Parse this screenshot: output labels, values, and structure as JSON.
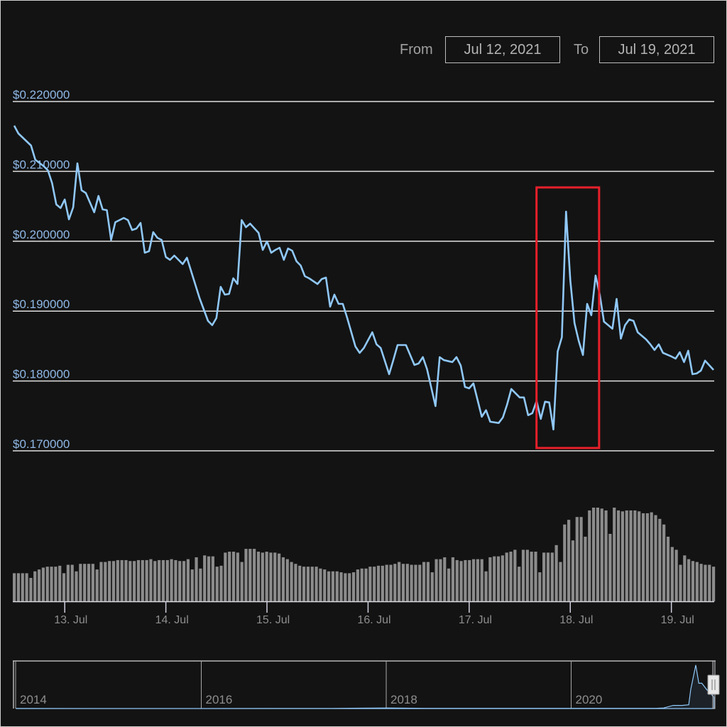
{
  "range_selector": {
    "from_label": "From",
    "from_value": "Jul 12, 2021",
    "to_label": "To",
    "to_value": "Jul 19, 2021"
  },
  "colors": {
    "background": "#131313",
    "price_line": "#90c8f8",
    "volume_bar": "#8c8c8c",
    "grid": "#e0e0e0",
    "highlight": "#e8202a",
    "axis_label": "#8fb8e6"
  },
  "chart_data": [
    {
      "type": "line",
      "series_kind": "price",
      "ylim": [
        0.17,
        0.22
      ],
      "y_ticks": [
        0.17,
        0.18,
        0.19,
        0.2,
        0.21,
        0.22
      ],
      "y_tick_labels": [
        "$0.170000",
        "$0.180000",
        "$0.190000",
        "$0.200000",
        "$0.210000",
        "$0.220000"
      ],
      "x_ticks": [
        "2021-07-13",
        "2021-07-14",
        "2021-07-15",
        "2021-07-16",
        "2021-07-17",
        "2021-07-18",
        "2021-07-19"
      ],
      "x_tick_labels": [
        "13. Jul",
        "14. Jul",
        "15. Jul",
        "16. Jul",
        "17. Jul",
        "18. Jul",
        "19. Jul"
      ],
      "grid": true,
      "highlight_box": {
        "from": "2021-07-17T17:00",
        "to": "2021-07-18T06:00",
        "color": "#e8202a"
      },
      "points": [
        [
          "2021-07-12T12:00",
          0.21654
        ],
        [
          "2021-07-12T13:00",
          0.21543
        ],
        [
          "2021-07-12T16:00",
          0.2137
        ],
        [
          "2021-07-12T17:00",
          0.21167
        ],
        [
          "2021-07-12T19:00",
          0.21075
        ],
        [
          "2021-07-12T20:00",
          0.21014
        ],
        [
          "2021-07-12T21:00",
          0.20831
        ],
        [
          "2021-07-12T22:00",
          0.20526
        ],
        [
          "2021-07-12T23:00",
          0.20476
        ],
        [
          "2021-07-13T00:00",
          0.20598
        ],
        [
          "2021-07-13T01:00",
          0.20313
        ],
        [
          "2021-07-13T02:00",
          0.20486
        ],
        [
          "2021-07-13T03:00",
          0.21116
        ],
        [
          "2021-07-13T04:00",
          0.2073
        ],
        [
          "2021-07-13T05:00",
          0.2069
        ],
        [
          "2021-07-13T07:00",
          0.20415
        ],
        [
          "2021-07-13T08:00",
          0.20648
        ],
        [
          "2021-07-13T09:00",
          0.20455
        ],
        [
          "2021-07-13T10:00",
          0.20445
        ],
        [
          "2021-07-13T11:00",
          0.20018
        ],
        [
          "2021-07-13T12:00",
          0.20272
        ],
        [
          "2021-07-13T14:00",
          0.20333
        ],
        [
          "2021-07-13T15:00",
          0.20303
        ],
        [
          "2021-07-13T16:00",
          0.20161
        ],
        [
          "2021-07-13T17:00",
          0.20181
        ],
        [
          "2021-07-13T18:00",
          0.20262
        ],
        [
          "2021-07-13T19:00",
          0.19835
        ],
        [
          "2021-07-13T20:00",
          0.19858
        ],
        [
          "2021-07-13T21:00",
          0.2013
        ],
        [
          "2021-07-13T22:00",
          0.20049
        ],
        [
          "2021-07-13T23:00",
          0.20018
        ],
        [
          "2021-07-14T00:00",
          0.19774
        ],
        [
          "2021-07-14T01:00",
          0.19734
        ],
        [
          "2021-07-14T02:00",
          0.19795
        ],
        [
          "2021-07-14T04:00",
          0.19673
        ],
        [
          "2021-07-14T05:00",
          0.19764
        ],
        [
          "2021-07-14T08:00",
          0.19185
        ],
        [
          "2021-07-14T10:00",
          0.1886
        ],
        [
          "2021-07-14T11:00",
          0.18799
        ],
        [
          "2021-07-14T12:00",
          0.189
        ],
        [
          "2021-07-14T13:00",
          0.19348
        ],
        [
          "2021-07-14T14:00",
          0.19236
        ],
        [
          "2021-07-14T15:00",
          0.19246
        ],
        [
          "2021-07-14T16:00",
          0.1947
        ],
        [
          "2021-07-14T17:00",
          0.19388
        ],
        [
          "2021-07-14T18:00",
          0.20303
        ],
        [
          "2021-07-14T19:00",
          0.20201
        ],
        [
          "2021-07-14T20:00",
          0.20252
        ],
        [
          "2021-07-14T22:00",
          0.2012
        ],
        [
          "2021-07-14T23:00",
          0.19876
        ],
        [
          "2021-07-15T00:00",
          0.19998
        ],
        [
          "2021-07-15T01:00",
          0.19835
        ],
        [
          "2021-07-15T02:00",
          0.19876
        ],
        [
          "2021-07-15T03:00",
          0.19906
        ],
        [
          "2021-07-15T04:00",
          0.19734
        ],
        [
          "2021-07-15T05:00",
          0.19896
        ],
        [
          "2021-07-15T06:00",
          0.19865
        ],
        [
          "2021-07-15T07:00",
          0.19713
        ],
        [
          "2021-07-15T08:00",
          0.19652
        ],
        [
          "2021-07-15T09:00",
          0.195
        ],
        [
          "2021-07-15T10:00",
          0.1947
        ],
        [
          "2021-07-15T12:00",
          0.19388
        ],
        [
          "2021-07-15T13:00",
          0.19459
        ],
        [
          "2021-07-15T14:00",
          0.1948
        ],
        [
          "2021-07-15T15:00",
          0.19063
        ],
        [
          "2021-07-15T16:00",
          0.19236
        ],
        [
          "2021-07-15T17:00",
          0.19104
        ],
        [
          "2021-07-15T18:00",
          0.19104
        ],
        [
          "2021-07-15T19:00",
          0.18911
        ],
        [
          "2021-07-15T21:00",
          0.18494
        ],
        [
          "2021-07-15T22:00",
          0.18402
        ],
        [
          "2021-07-15T23:00",
          0.18473
        ],
        [
          "2021-07-16T01:00",
          0.18697
        ],
        [
          "2021-07-16T02:00",
          0.18524
        ],
        [
          "2021-07-16T03:00",
          0.18473
        ],
        [
          "2021-07-16T05:00",
          0.18098
        ],
        [
          "2021-07-16T06:00",
          0.18299
        ],
        [
          "2021-07-16T07:00",
          0.18514
        ],
        [
          "2021-07-16T09:00",
          0.18514
        ],
        [
          "2021-07-16T11:00",
          0.1823
        ],
        [
          "2021-07-16T12:00",
          0.1825
        ],
        [
          "2021-07-16T13:00",
          0.18341
        ],
        [
          "2021-07-16T14:00",
          0.18169
        ],
        [
          "2021-07-16T16:00",
          0.1764
        ],
        [
          "2021-07-16T17:00",
          0.18341
        ],
        [
          "2021-07-16T18:00",
          0.18299
        ],
        [
          "2021-07-16T20:00",
          0.1827
        ],
        [
          "2021-07-16T21:00",
          0.18341
        ],
        [
          "2021-07-16T22:00",
          0.1822
        ],
        [
          "2021-07-16T23:00",
          0.17915
        ],
        [
          "2021-07-17T00:00",
          0.17894
        ],
        [
          "2021-07-17T01:00",
          0.17965
        ],
        [
          "2021-07-17T03:00",
          0.17488
        ],
        [
          "2021-07-17T04:00",
          0.17581
        ],
        [
          "2021-07-17T05:00",
          0.17417
        ],
        [
          "2021-07-17T07:00",
          0.17398
        ],
        [
          "2021-07-17T08:00",
          0.17478
        ],
        [
          "2021-07-17T09:00",
          0.17661
        ],
        [
          "2021-07-17T10:00",
          0.17885
        ],
        [
          "2021-07-17T12:00",
          0.17764
        ],
        [
          "2021-07-17T13:00",
          0.17764
        ],
        [
          "2021-07-17T14:00",
          0.1751
        ],
        [
          "2021-07-17T15:00",
          0.1754
        ],
        [
          "2021-07-17T16:00",
          0.17713
        ],
        [
          "2021-07-17T17:00",
          0.17457
        ],
        [
          "2021-07-17T18:00",
          0.17703
        ],
        [
          "2021-07-17T19:00",
          0.17693
        ],
        [
          "2021-07-17T20:00",
          0.17306
        ],
        [
          "2021-07-17T21:00",
          0.18423
        ],
        [
          "2021-07-17T22:00",
          0.18626
        ],
        [
          "2021-07-17T23:00",
          0.20425
        ],
        [
          "2021-07-18T00:00",
          0.19439
        ],
        [
          "2021-07-18T01:00",
          0.18829
        ],
        [
          "2021-07-18T02:00",
          0.18575
        ],
        [
          "2021-07-18T03:00",
          0.18372
        ],
        [
          "2021-07-18T04:00",
          0.19104
        ],
        [
          "2021-07-18T05:00",
          0.18941
        ],
        [
          "2021-07-18T06:00",
          0.1951
        ],
        [
          "2021-07-18T07:00",
          0.19236
        ],
        [
          "2021-07-18T08:00",
          0.1885
        ],
        [
          "2021-07-18T09:00",
          0.18799
        ],
        [
          "2021-07-18T10:00",
          0.18748
        ],
        [
          "2021-07-18T11:00",
          0.19175
        ],
        [
          "2021-07-18T12:00",
          0.18606
        ],
        [
          "2021-07-18T13:00",
          0.18799
        ],
        [
          "2021-07-18T14:00",
          0.1888
        ],
        [
          "2021-07-18T15:00",
          0.1886
        ],
        [
          "2021-07-18T16:00",
          0.18697
        ],
        [
          "2021-07-18T18:00",
          0.18595
        ],
        [
          "2021-07-18T19:00",
          0.18524
        ],
        [
          "2021-07-18T20:00",
          0.18443
        ],
        [
          "2021-07-18T21:00",
          0.18524
        ],
        [
          "2021-07-18T22:00",
          0.18402
        ],
        [
          "2021-07-19T00:00",
          0.18351
        ],
        [
          "2021-07-19T01:00",
          0.1832
        ],
        [
          "2021-07-19T02:00",
          0.18412
        ],
        [
          "2021-07-19T03:00",
          0.1827
        ],
        [
          "2021-07-19T04:00",
          0.18433
        ],
        [
          "2021-07-19T05:00",
          0.18098
        ],
        [
          "2021-07-19T06:00",
          0.18108
        ],
        [
          "2021-07-19T07:00",
          0.18148
        ],
        [
          "2021-07-19T08:00",
          0.18291
        ],
        [
          "2021-07-19T10:00",
          0.18159
        ]
      ]
    },
    {
      "type": "bar",
      "series_kind": "volume (relative, hourly, unlabeled axis)",
      "values": [
        30,
        30,
        30,
        30,
        25,
        32,
        34,
        36,
        37,
        37,
        37,
        38,
        30,
        39,
        39,
        32,
        40,
        40,
        40,
        40,
        34,
        42,
        42,
        43,
        43,
        44,
        44,
        44,
        43,
        43,
        44,
        44,
        44,
        45,
        43,
        44,
        44,
        44,
        45,
        44,
        43,
        43,
        45,
        34,
        47,
        35,
        49,
        48,
        48,
        37,
        38,
        52,
        53,
        53,
        52,
        42,
        56,
        56,
        56,
        53,
        52,
        53,
        52,
        52,
        51,
        47,
        45,
        42,
        40,
        38,
        37,
        37,
        37,
        37,
        35,
        34,
        32,
        32,
        32,
        31,
        30,
        30,
        31,
        34,
        35,
        35,
        37,
        37,
        38,
        38,
        39,
        39,
        40,
        42,
        40,
        40,
        39,
        39,
        39,
        42,
        42,
        31,
        45,
        45,
        47,
        35,
        47,
        44,
        43,
        44,
        44,
        45,
        45,
        45,
        32,
        47,
        48,
        48,
        49,
        52,
        53,
        55,
        37,
        55,
        55,
        53,
        53,
        31,
        52,
        52,
        52,
        60,
        42,
        82,
        87,
        65,
        90,
        90,
        69,
        97,
        100,
        100,
        99,
        97,
        72,
        100,
        97,
        96,
        97,
        97,
        97,
        96,
        94,
        94,
        95,
        92,
        88,
        82,
        69,
        58,
        55,
        39,
        49,
        45,
        43,
        42,
        40,
        39,
        39,
        37
      ]
    },
    {
      "type": "area",
      "series_kind": "navigator",
      "x_tick_labels": [
        "2014",
        "2016",
        "2018",
        "2020"
      ],
      "points": [
        [
          "2014-01-01",
          0.0015
        ],
        [
          "2016-01-01",
          0.0002
        ],
        [
          "2017-06-01",
          0.002
        ],
        [
          "2018-01-08",
          0.009
        ],
        [
          "2018-06-01",
          0.003
        ],
        [
          "2019-07-01",
          0.003
        ],
        [
          "2020-12-01",
          0.003
        ],
        [
          "2021-01-01",
          0.009
        ],
        [
          "2021-02-08",
          0.05
        ],
        [
          "2021-03-15",
          0.05
        ],
        [
          "2021-04-10",
          0.06
        ],
        [
          "2021-04-18",
          0.3
        ],
        [
          "2021-05-08",
          0.69
        ],
        [
          "2021-05-20",
          0.4
        ],
        [
          "2021-06-01",
          0.4
        ],
        [
          "2021-06-20",
          0.3
        ],
        [
          "2021-07-19",
          0.18
        ]
      ]
    }
  ]
}
